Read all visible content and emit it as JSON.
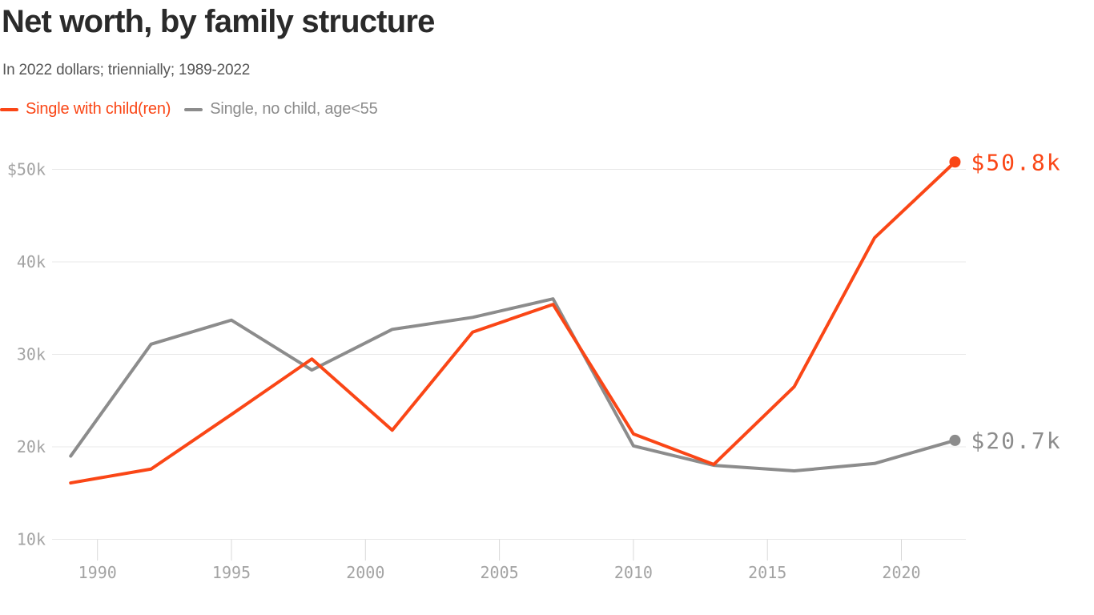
{
  "header": {
    "title": "Net worth, by family structure",
    "subtitle": "In 2022 dollars; triennially; 1989-2022"
  },
  "legend": {
    "items": [
      {
        "label": "Single with child(ren)",
        "color": "#fa4616"
      },
      {
        "label": "Single, no child, age<55",
        "color": "#8c8c8c"
      }
    ]
  },
  "chart_data": {
    "type": "line",
    "title": "Net worth, by family structure",
    "subtitle": "In 2022 dollars; triennially; 1989-2022",
    "units": "thousands of 2022 dollars",
    "x": [
      1989,
      1992,
      1995,
      1998,
      2001,
      2004,
      2007,
      2010,
      2013,
      2016,
      2019,
      2022
    ],
    "series": [
      {
        "name": "Single with child(ren)",
        "color": "#fa4616",
        "values": [
          16.1,
          17.6,
          23.5,
          29.5,
          21.8,
          32.4,
          35.4,
          21.4,
          18.1,
          26.5,
          42.6,
          50.8
        ],
        "end_label": "$50.8k"
      },
      {
        "name": "Single, no child, age<55",
        "color": "#8c8c8c",
        "values": [
          19.0,
          31.1,
          33.7,
          28.3,
          32.7,
          34.0,
          36.0,
          20.1,
          18.0,
          17.4,
          18.2,
          20.7
        ],
        "end_label": "$20.7k"
      }
    ],
    "y_ticks": [
      {
        "label": "$50k",
        "value": 50
      },
      {
        "label": "40k",
        "value": 40
      },
      {
        "label": "30k",
        "value": 30
      },
      {
        "label": "20k",
        "value": 20
      },
      {
        "label": "10k",
        "value": 10
      }
    ],
    "x_ticks": [
      {
        "label": "1990",
        "value": 1990
      },
      {
        "label": "1995",
        "value": 1995
      },
      {
        "label": "2000",
        "value": 2000
      },
      {
        "label": "2005",
        "value": 2005
      },
      {
        "label": "2010",
        "value": 2010
      },
      {
        "label": "2015",
        "value": 2015
      },
      {
        "label": "2020",
        "value": 2020
      }
    ],
    "ylim": [
      10,
      52
    ],
    "xlim": [
      1989,
      2022
    ],
    "grid": "horizontal",
    "legend_position": "top-left"
  },
  "colors": {
    "background": "#ffffff",
    "title": "#2a2a2a",
    "subtitle": "#555555",
    "axis_label": "#a3a3a3",
    "gridline": "#e8e8e8",
    "tick": "#d8d8d8",
    "series_orange": "#fa4616",
    "series_gray": "#8c8c8c"
  }
}
